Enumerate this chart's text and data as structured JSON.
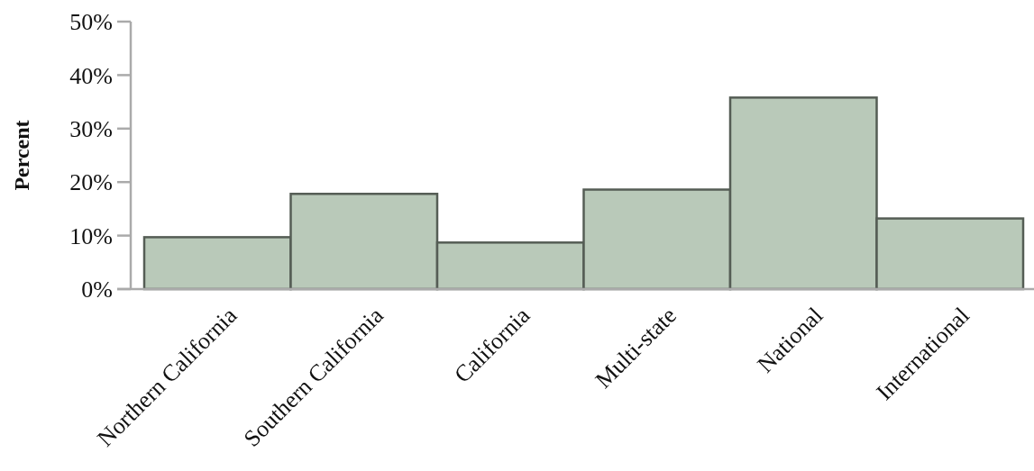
{
  "chart_data": {
    "type": "bar",
    "ylabel": "Percent",
    "categories": [
      "Northern California",
      "Southern California",
      "California",
      "Multi-state",
      "National",
      "International"
    ],
    "values": [
      9.7,
      17.8,
      8.7,
      18.6,
      35.8,
      13.2
    ],
    "color": "#b9c9b9",
    "ylim": [
      0,
      50
    ],
    "yticks": [
      {
        "value": 0,
        "label": "0%"
      },
      {
        "value": 10,
        "label": "10%"
      },
      {
        "value": 20,
        "label": "20%"
      },
      {
        "value": 30,
        "label": "30%"
      },
      {
        "value": 40,
        "label": "40%"
      },
      {
        "value": 50,
        "label": "50%"
      }
    ],
    "grid": false
  }
}
